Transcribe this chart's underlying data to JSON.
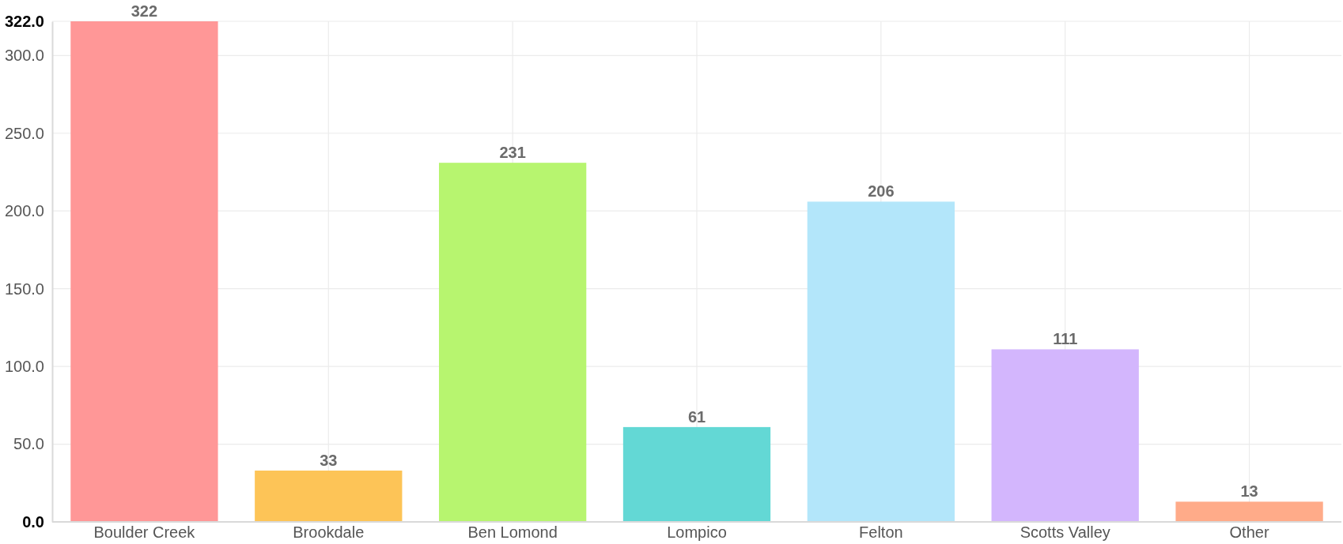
{
  "chart_data": {
    "type": "bar",
    "categories": [
      "Boulder Creek",
      "Brookdale",
      "Ben Lomond",
      "Lompico",
      "Felton",
      "Scotts Valley",
      "Other"
    ],
    "values": [
      322,
      33,
      231,
      61,
      206,
      111,
      13
    ],
    "colors": [
      "#ff9797",
      "#fdc457",
      "#b7f56f",
      "#63d8d5",
      "#b3e6fa",
      "#d3b6fd",
      "#ffab89"
    ],
    "ylim": [
      0,
      322
    ],
    "yticks": [
      {
        "value": 0,
        "label": "0.0"
      },
      {
        "value": 50,
        "label": "50.0"
      },
      {
        "value": 100,
        "label": "100.0"
      },
      {
        "value": 150,
        "label": "150.0"
      },
      {
        "value": 200,
        "label": "200.0"
      },
      {
        "value": 250,
        "label": "250.0"
      },
      {
        "value": 300,
        "label": "300.0"
      },
      {
        "value": 322,
        "label": "322.0"
      }
    ],
    "grid": true,
    "data_labels": true
  }
}
